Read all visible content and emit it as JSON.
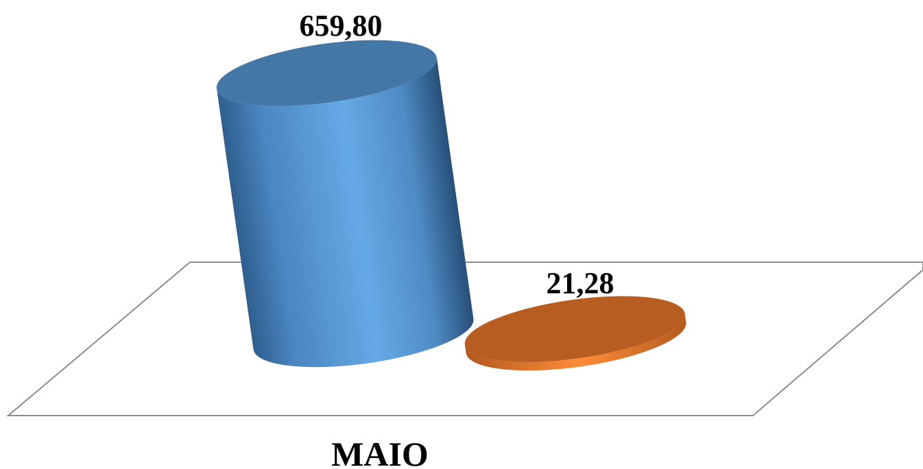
{
  "chart_data": {
    "type": "bar",
    "style": "3d-cylinder",
    "categories": [
      "MAIO"
    ],
    "series": [
      {
        "values": [
          659.8
        ],
        "label": "659,80",
        "color": "#5b9bd5"
      },
      {
        "values": [
          21.28
        ],
        "label": "21,28",
        "color": "#ed7d31"
      }
    ],
    "title": "",
    "xlabel": "",
    "ylabel": "",
    "ylim": [
      0,
      659.8
    ],
    "grid": false,
    "legend": "none"
  }
}
